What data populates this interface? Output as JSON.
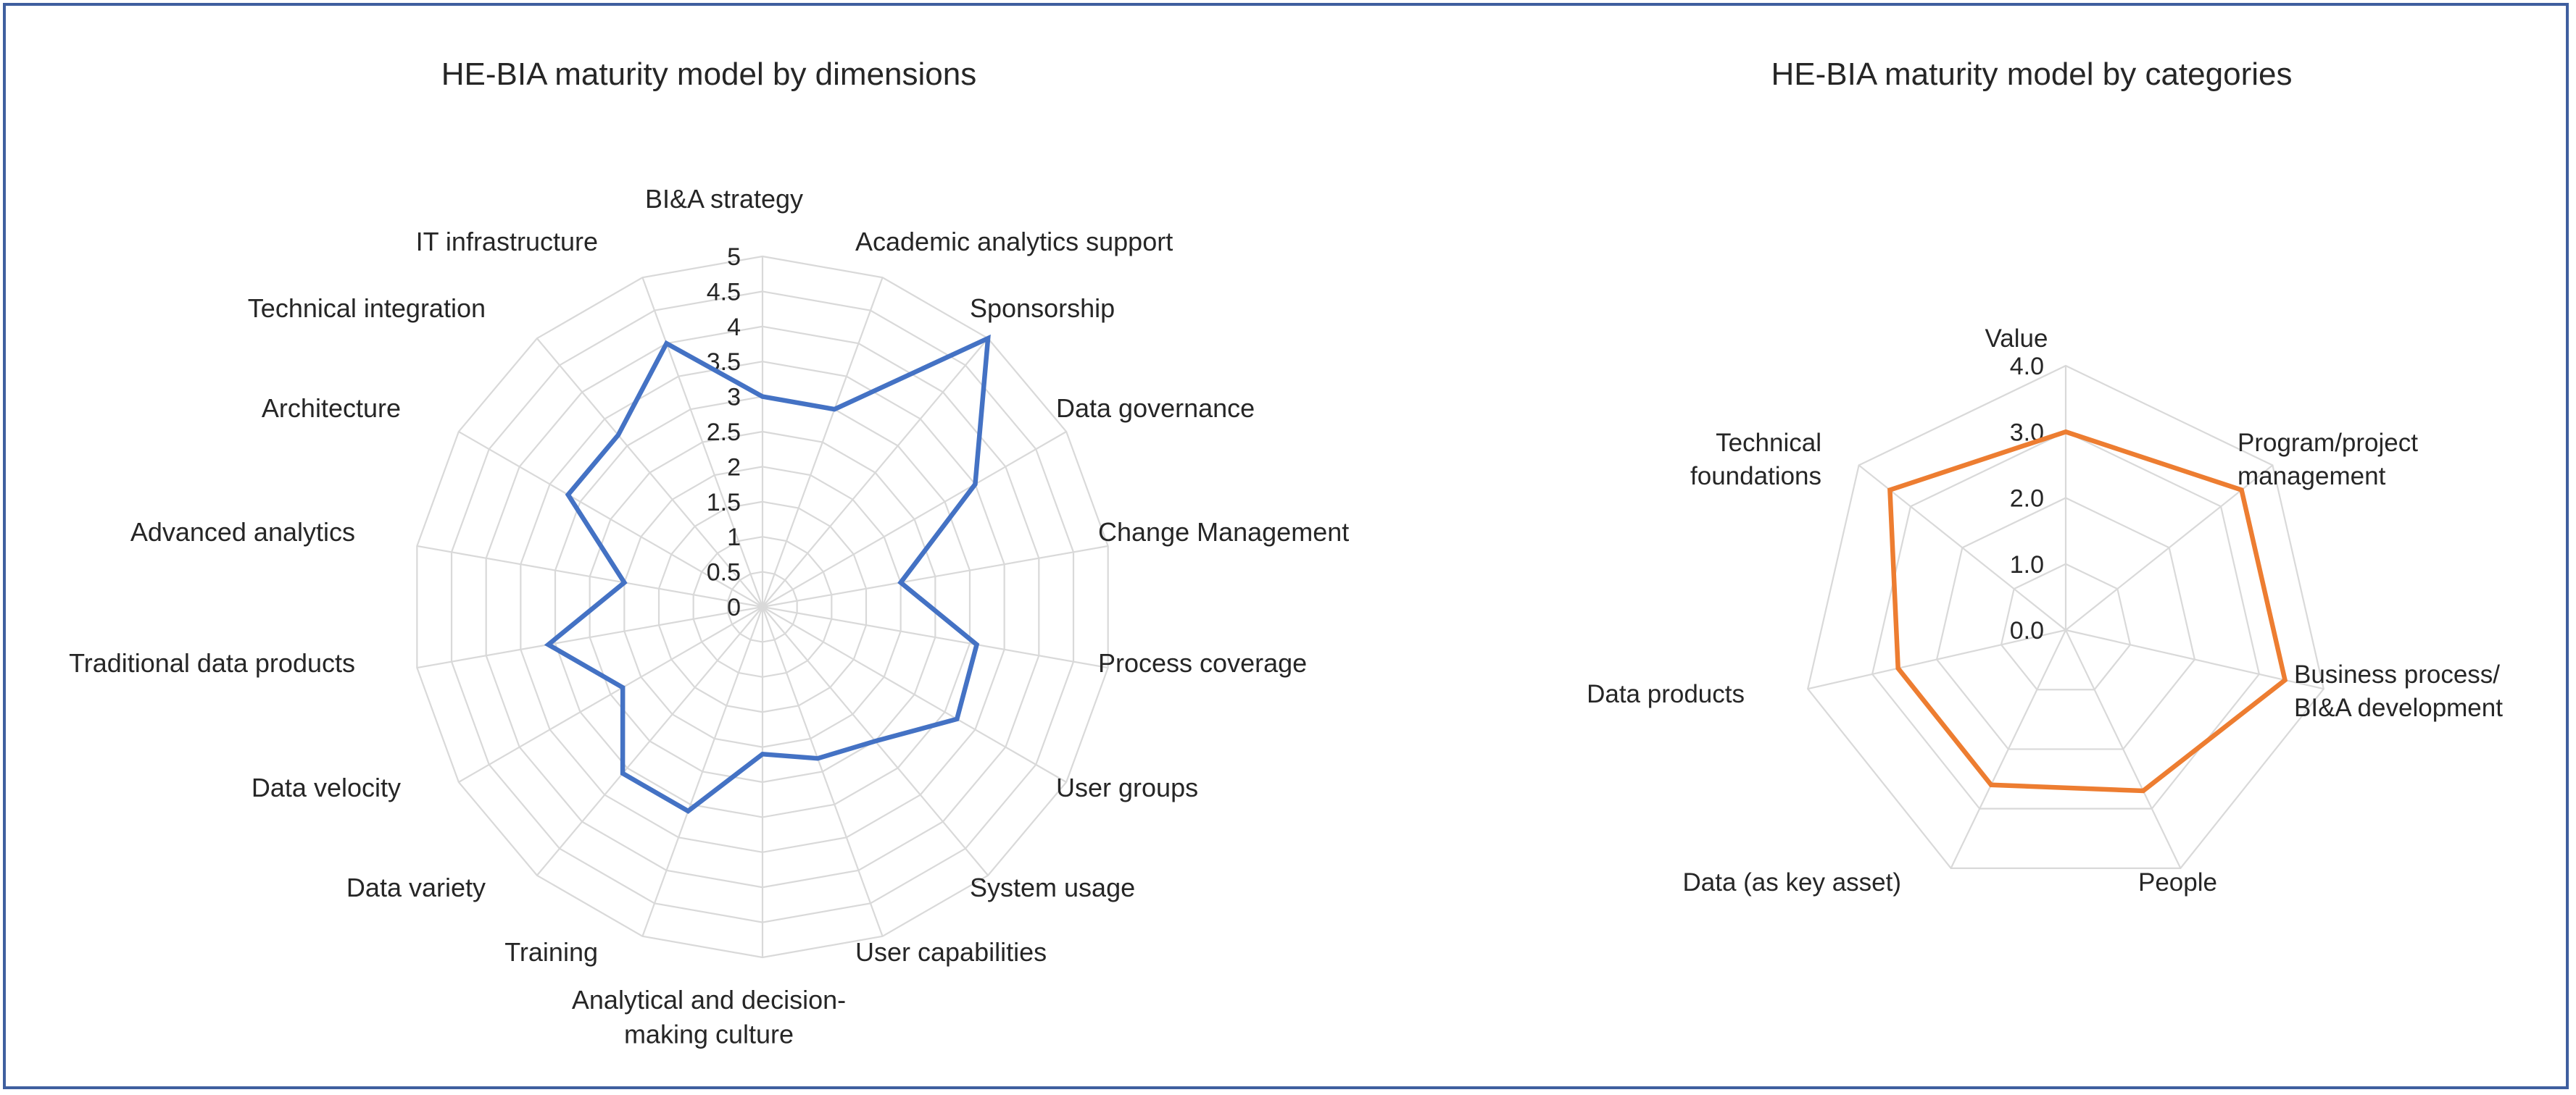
{
  "chart_data": [
    {
      "type": "radar",
      "title": "HE-BIA maturity model by dimensions",
      "rlim": [
        0,
        5
      ],
      "ticks": [
        "0",
        "0.5",
        "1",
        "1.5",
        "2",
        "2.5",
        "3",
        "3.5",
        "4",
        "4.5",
        "5"
      ],
      "categories": [
        "BI&A strategy",
        "Academic analytics support",
        "Sponsorship",
        "Data governance",
        "Change Management",
        "Process coverage",
        "User groups",
        "System usage",
        "User capabilities",
        "Analytical and decision-making culture",
        "Training",
        "Data variety",
        "Data velocity",
        "Traditional data products",
        "Advanced analytics",
        "Architecture",
        "Technical integration",
        "IT infrastructure"
      ],
      "values": [
        3.0,
        3.0,
        5.0,
        3.5,
        2.0,
        3.1,
        3.2,
        2.5,
        2.3,
        2.1,
        3.1,
        3.1,
        2.3,
        3.1,
        2.0,
        3.2,
        3.2,
        4.0
      ],
      "color": "#4472c4"
    },
    {
      "type": "radar",
      "title": "HE-BIA maturity model by categories",
      "rlim": [
        0,
        4
      ],
      "ticks": [
        "0.0",
        "1.0",
        "2.0",
        "3.0",
        "4.0"
      ],
      "categories": [
        "Value",
        "Program/project management",
        "Business process/ BI&A development",
        "People",
        "Data (as key asset)",
        "Data products",
        "Technical foundations"
      ],
      "values": [
        3.0,
        3.4,
        3.4,
        2.7,
        2.6,
        2.6,
        3.4
      ],
      "color": "#ed7d31"
    }
  ]
}
